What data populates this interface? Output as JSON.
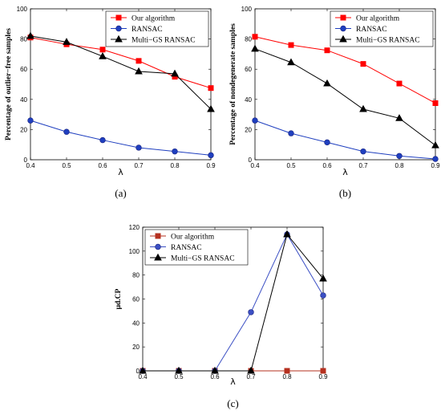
{
  "chart_data": [
    {
      "type": "line",
      "x": [
        0.4,
        0.5,
        0.6,
        0.7,
        0.8,
        0.9
      ],
      "xlabel": "λ",
      "ylabel": "Percentage of outlier−free samples",
      "xlim": [
        0.4,
        0.9
      ],
      "ylim": [
        0,
        100
      ],
      "xticks": [
        "0.4",
        "0.5",
        "0.6",
        "0.7",
        "0.8",
        "0.9"
      ],
      "yticks": [
        "0",
        "20",
        "40",
        "60",
        "80",
        "100"
      ],
      "legend_position": "top-right",
      "caption": "(a)",
      "series": [
        {
          "name": "Our algorithm",
          "values": [
            81,
            76.5,
            73,
            65.5,
            55,
            47.5
          ],
          "color": "#ff0000",
          "marker": "square"
        },
        {
          "name": "RANSAC",
          "values": [
            26,
            18.5,
            13,
            8,
            5.5,
            3
          ],
          "color": "#1f3fbf",
          "marker": "circle"
        },
        {
          "name": "Multi−GS RANSAC",
          "values": [
            82,
            78,
            68.5,
            58.5,
            57,
            33.5
          ],
          "color": "#000000",
          "marker": "triangle"
        }
      ]
    },
    {
      "type": "line",
      "x": [
        0.4,
        0.5,
        0.6,
        0.7,
        0.8,
        0.9
      ],
      "xlabel": "λ",
      "ylabel": "Percentage of nondegenerate samples",
      "xlim": [
        0.4,
        0.9
      ],
      "ylim": [
        0,
        100
      ],
      "xticks": [
        "0.4",
        "0.5",
        "0.6",
        "0.7",
        "0.8",
        "0.9"
      ],
      "yticks": [
        "0",
        "20",
        "40",
        "60",
        "80",
        "100"
      ],
      "legend_position": "top-right",
      "caption": "(b)",
      "series": [
        {
          "name": "Our algorithm",
          "values": [
            81.5,
            76,
            72.5,
            63.5,
            50.5,
            37.5
          ],
          "color": "#ff0000",
          "marker": "square"
        },
        {
          "name": "RANSAC",
          "values": [
            26,
            17.5,
            11.5,
            5.5,
            2.5,
            0.5
          ],
          "color": "#1f3fbf",
          "marker": "circle"
        },
        {
          "name": "Multi−GS RANSAC",
          "values": [
            73.5,
            64.5,
            50.5,
            33.5,
            27.5,
            9.5
          ],
          "color": "#000000",
          "marker": "triangle"
        }
      ]
    },
    {
      "type": "line",
      "x": [
        0.4,
        0.5,
        0.6,
        0.7,
        0.8,
        0.9
      ],
      "xlabel": "λ",
      "ylabel": "μd.CP",
      "xlim": [
        0.4,
        0.9
      ],
      "ylim": [
        0,
        120
      ],
      "xticks": [
        "0.4",
        "0.5",
        "0.6",
        "0.7",
        "0.8",
        "0.9"
      ],
      "yticks": [
        "0",
        "20",
        "40",
        "60",
        "80",
        "100",
        "120"
      ],
      "legend_position": "top-left",
      "caption": "(c)",
      "series": [
        {
          "name": "Our algorithm",
          "values": [
            0,
            0,
            0,
            0,
            0,
            0
          ],
          "color": "#b5301f",
          "marker": "square"
        },
        {
          "name": "RANSAC",
          "values": [
            0,
            0,
            0,
            49,
            114,
            63
          ],
          "color": "#3b4fc4",
          "marker": "circle"
        },
        {
          "name": "Multi−GS RANSAC",
          "values": [
            0,
            0,
            0,
            0,
            114,
            77
          ],
          "color": "#000000",
          "marker": "triangle"
        }
      ]
    }
  ]
}
